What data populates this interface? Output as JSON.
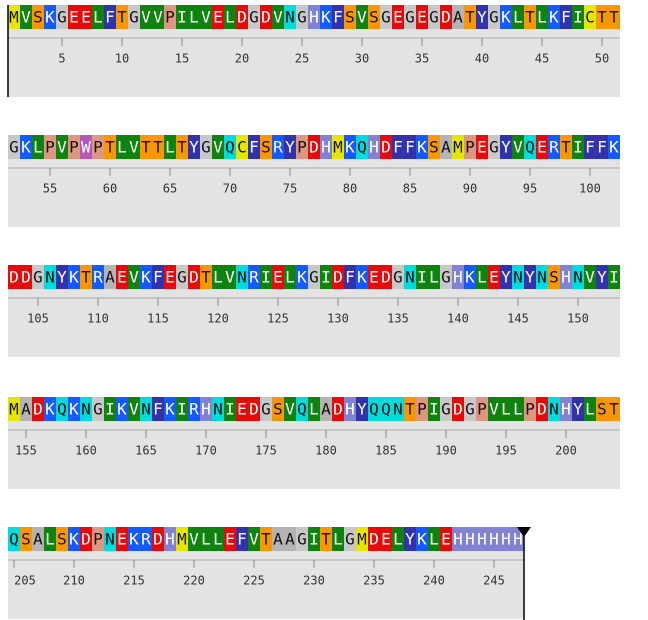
{
  "rows": [
    {
      "sequence": "MVSKGEELFTGVVPILVELDGDVNGHKFSVSGEGEGDATYGKLTLKFICTT",
      "ticks": [
        5,
        10,
        15,
        20,
        25,
        30,
        35,
        40,
        45,
        50
      ]
    },
    {
      "sequence": "GKLPVPWPTLVTTLTYGVQCFSRYPDHMKQHDFFKSAMPEGYVQERTIFFK",
      "ticks": [
        55,
        60,
        65,
        70,
        75,
        80,
        85,
        90,
        95,
        100
      ]
    },
    {
      "sequence": "DDGNYKTRAEVKFEGDTLVNRIELKGIDFKEDGNILGHKLEYNYNSHNVYI",
      "ticks": [
        105,
        110,
        115,
        120,
        125,
        130,
        135,
        140,
        145,
        150
      ]
    },
    {
      "sequence": "MADKQKNGIKVNFKIRHNIEDGSVQLADHYQQNTPIGDGPVLLPDNHYLST",
      "ticks": [
        155,
        160,
        165,
        170,
        175,
        180,
        185,
        190,
        195,
        200
      ]
    },
    {
      "sequence": "QSALSKDPNEKRDHMVLLEFVTAAGITLGMDELYKLEHHHHHH",
      "ticks": [
        205,
        210,
        215,
        220,
        225,
        230,
        235,
        240,
        245
      ]
    }
  ],
  "residue_colors": {
    "A": "#b4b4b4",
    "C": "#e6e600",
    "D": "#e60a0a",
    "E": "#e60a0a",
    "F": "#3232aa",
    "G": "#c8c8c8",
    "H": "#8282d2",
    "I": "#0f820f",
    "K": "#145aff",
    "L": "#0f820f",
    "M": "#e6e600",
    "N": "#00dcdc",
    "P": "#dc9682",
    "Q": "#00dcdc",
    "R": "#145aff",
    "S": "#fa9600",
    "T": "#fa9600",
    "V": "#0f820f",
    "W": "#b45ab4",
    "Y": "#3232aa"
  }
}
